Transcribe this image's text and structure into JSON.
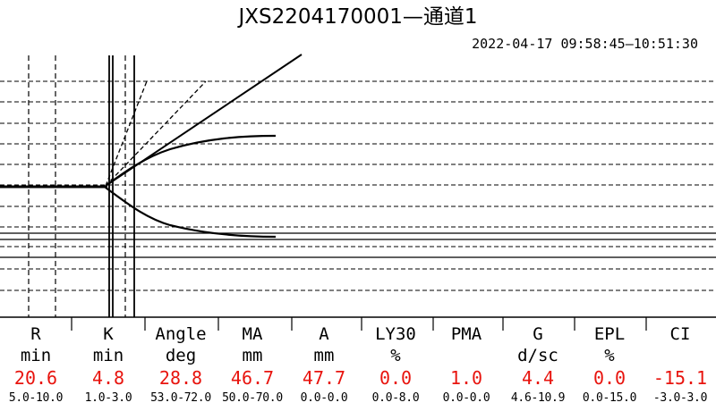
{
  "header": {
    "title": "JXS2204170001—通道1",
    "timespan": "2022-04-17 09:58:45—10:51:30"
  },
  "chart_data": {
    "type": "line",
    "title": "JXS2204170001—通道1",
    "grid": true,
    "series": [
      {
        "values": []
      }
    ]
  },
  "parameters": [
    {
      "name": "R",
      "unit": "min",
      "value": "20.6",
      "reference": "5.0-10.0"
    },
    {
      "name": "K",
      "unit": "min",
      "value": "4.8",
      "reference": "1.0-3.0"
    },
    {
      "name": "Angle",
      "unit": "deg",
      "value": "28.8",
      "reference": "53.0-72.0"
    },
    {
      "name": "MA",
      "unit": "mm",
      "value": "46.7",
      "reference": "50.0-70.0"
    },
    {
      "name": "A",
      "unit": "mm",
      "value": "47.7",
      "reference": "0.0-0.0"
    },
    {
      "name": "LY30",
      "unit": "%",
      "value": "0.0",
      "reference": "0.0-8.0"
    },
    {
      "name": "PMA",
      "unit": "",
      "value": "1.0",
      "reference": "0.0-0.0"
    },
    {
      "name": "G",
      "unit": "d/sc",
      "value": "4.4",
      "reference": "4.6-10.9"
    },
    {
      "name": "EPL",
      "unit": "%",
      "value": "0.0",
      "reference": "0.0-15.0"
    },
    {
      "name": "CI",
      "unit": "",
      "value": "-15.1",
      "reference": "-3.0-3.0"
    }
  ],
  "styles": {
    "value_color": "#e8140e",
    "line_color": "#000000"
  }
}
